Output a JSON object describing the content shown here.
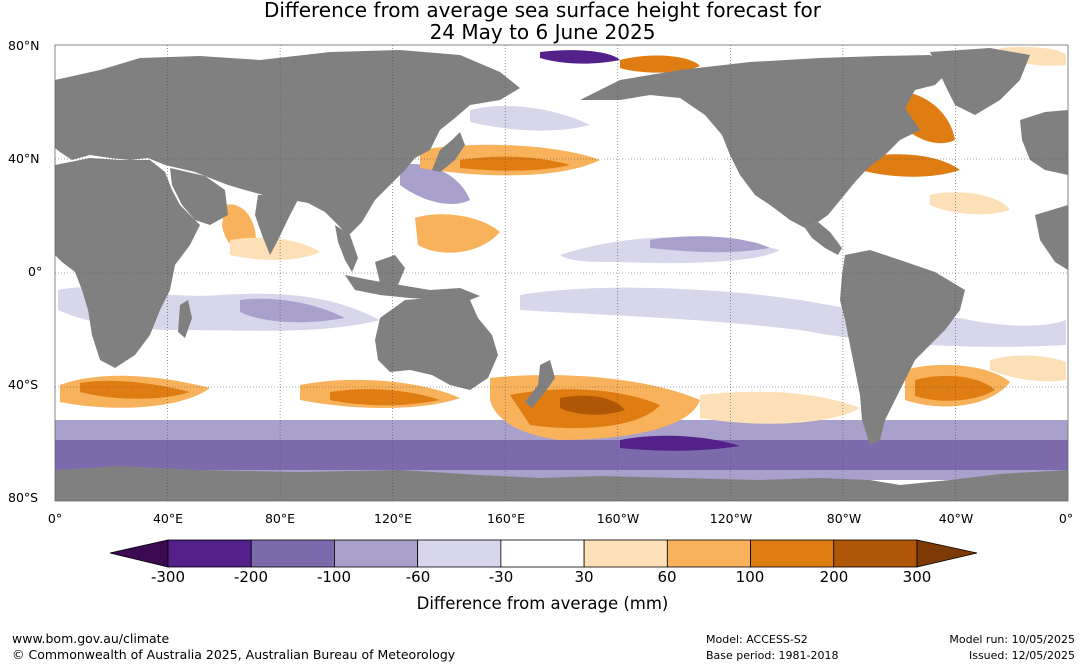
{
  "title": {
    "line1": "Difference from average sea surface height forecast for",
    "line2": "24 May to 6 June 2025"
  },
  "axes": {
    "latitude_labels": [
      "80°N",
      "40°N",
      "0°",
      "40°S",
      "80°S"
    ],
    "longitude_labels": [
      "0°",
      "40°E",
      "80°E",
      "120°E",
      "160°E",
      "160°W",
      "120°W",
      "80°W",
      "40°W",
      "0°"
    ]
  },
  "colorbar": {
    "ticks": [
      "-300",
      "-200",
      "-100",
      "-60",
      "-30",
      "30",
      "60",
      "100",
      "200",
      "300"
    ],
    "colors": [
      "#3b0a52",
      "#54218a",
      "#7d6aad",
      "#a9a1cc",
      "#d7d6ea",
      "#ffffff",
      "#fde0b7",
      "#f9b25c",
      "#e07d12",
      "#b05707",
      "#7e3a05"
    ],
    "label": "Difference from average (mm)"
  },
  "land_color": "#808080",
  "footer": {
    "url": "www.bom.gov.au/climate",
    "copyright": "© Commonwealth of Australia 2025, Australian Bureau of Meteorology",
    "model": "Model: ACCESS-S2",
    "base_period": "Base period: 1981-2018",
    "model_run": "Model run: 10/05/2025",
    "issued": "Issued: 12/05/2025"
  }
}
